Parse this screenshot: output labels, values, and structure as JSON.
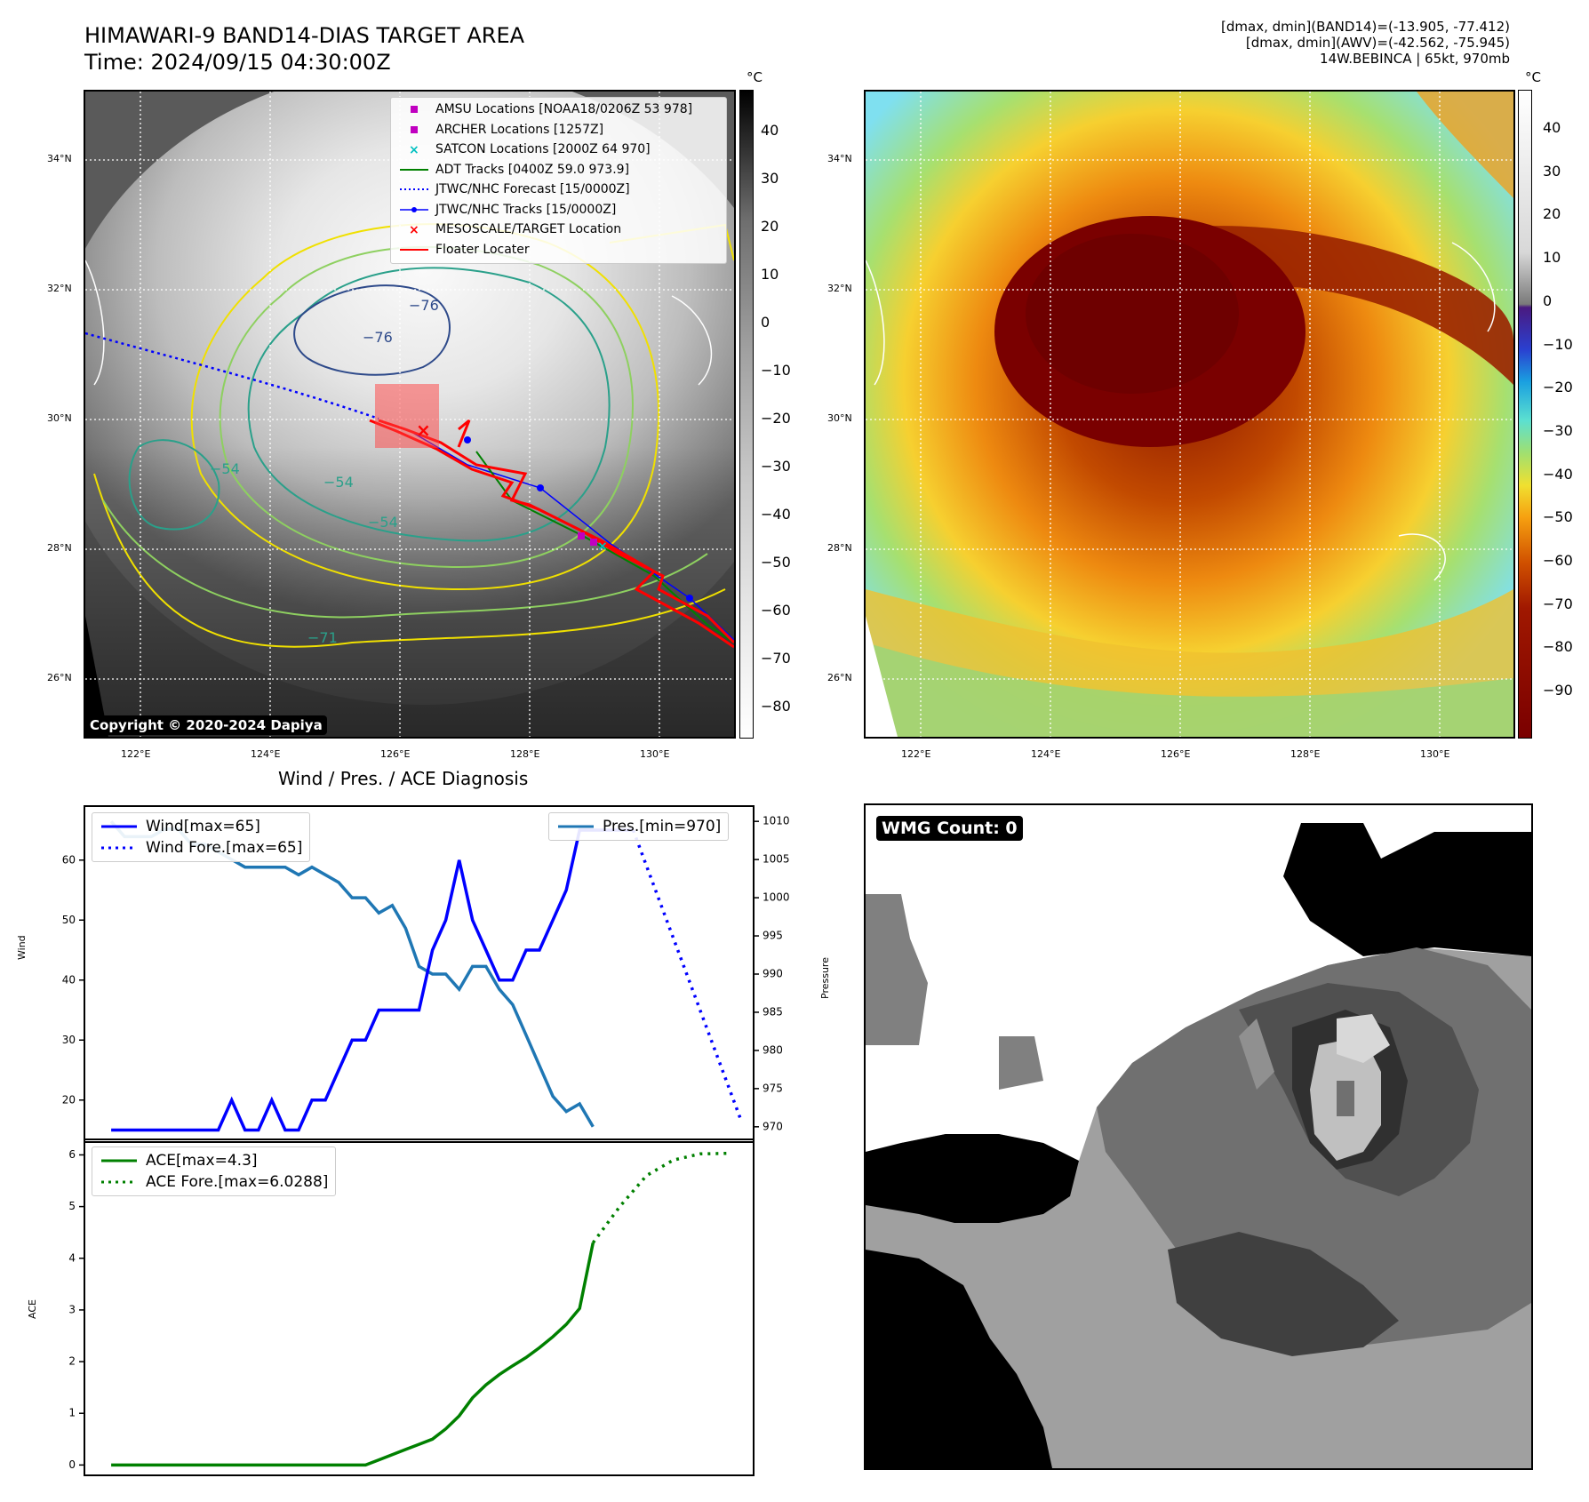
{
  "header": {
    "title_line1": "HIMAWARI-9 BAND14-DIAS TARGET AREA",
    "title_line2": "Time: 2024/09/15 04:30:00Z",
    "right_line1": "[dmax, dmin](BAND14)=(-13.905, -77.412)",
    "right_line2": "[dmax, dmin](AWV)=(-42.562, -75.945)",
    "right_line3": "14W.BEBINCA | 65kt, 970mb"
  },
  "map": {
    "lat_labels": [
      "34°N",
      "32°N",
      "30°N",
      "28°N",
      "26°N"
    ],
    "lon_labels": [
      "122°E",
      "124°E",
      "126°E",
      "128°E",
      "130°E"
    ],
    "contour_labels": [
      "−76",
      "−76",
      "−54",
      "−54",
      "−54",
      "−71"
    ],
    "copyright": "Copyright © 2020-2024 Dapiya",
    "legend": [
      {
        "label": "AMSU Locations [NOAA18/0206Z 53 978]",
        "symbol": "square",
        "color": "#c000c0"
      },
      {
        "label": "ARCHER Locations [1257Z]",
        "symbol": "square",
        "color": "#c000c0"
      },
      {
        "label": "SATCON Locations [2000Z 64 970]",
        "symbol": "x",
        "color": "#00c0c0"
      },
      {
        "label": "ADT Tracks [0400Z 59.0 973.9]",
        "symbol": "line",
        "color": "#008000"
      },
      {
        "label": "JTWC/NHC Forecast [15/0000Z]",
        "symbol": "dotted",
        "color": "#0000ff"
      },
      {
        "label": "JTWC/NHC Tracks [15/0000Z]",
        "symbol": "dotline",
        "color": "#0000ff"
      },
      {
        "label": "MESOSCALE/TARGET Location",
        "symbol": "x",
        "color": "#ff0000"
      },
      {
        "label": "Floater Locater",
        "symbol": "line",
        "color": "#ff0000"
      }
    ]
  },
  "colorbar_gray": {
    "unit": "°C",
    "ticks": [
      "40",
      "30",
      "20",
      "10",
      "0",
      "−10",
      "−20",
      "−30",
      "−40",
      "−50",
      "−60",
      "−70",
      "−80"
    ]
  },
  "colorbar_awv": {
    "unit": "°C",
    "ticks": [
      "40",
      "30",
      "20",
      "10",
      "0",
      "−10",
      "−20",
      "−30",
      "−40",
      "−50",
      "−60",
      "−70",
      "−80",
      "−90"
    ]
  },
  "wmg": {
    "badge": "WMG Count: 0"
  },
  "chart_data": [
    {
      "type": "line",
      "title": "Wind / Pres. / ACE Diagnosis",
      "ylabel": "Wind",
      "y2label": "Pressure",
      "ylim": [
        13,
        69
      ],
      "y2lim": [
        968,
        1012
      ],
      "yticks": [
        20,
        30,
        40,
        50,
        60
      ],
      "y2ticks": [
        970,
        975,
        980,
        985,
        990,
        995,
        1000,
        1005,
        1010
      ],
      "xlim": [
        -2,
        48
      ],
      "series": [
        {
          "name": "Wind[max=65]",
          "axis": "left",
          "style": "solid",
          "color": "#0000ff",
          "x": [
            0,
            2,
            4,
            6,
            8,
            9,
            10,
            11,
            12,
            13,
            14,
            15,
            16,
            17,
            18,
            19,
            20,
            21,
            22,
            23,
            24,
            25,
            26,
            27,
            28,
            29,
            30,
            31,
            32,
            33,
            34,
            35,
            36,
            37,
            38,
            39
          ],
          "y": [
            15,
            15,
            15,
            15,
            15,
            20,
            15,
            15,
            20,
            15,
            15,
            20,
            20,
            25,
            30,
            30,
            35,
            35,
            35,
            35,
            45,
            50,
            60,
            50,
            45,
            40,
            40,
            45,
            45,
            50,
            55,
            65,
            65,
            65,
            65,
            65
          ]
        },
        {
          "name": "Wind Fore.[max=65]",
          "axis": "left",
          "style": "dotted",
          "color": "#0000ff",
          "x": [
            39,
            47
          ],
          "y": [
            65,
            17
          ]
        },
        {
          "name": "Pres.[min=970]",
          "axis": "right",
          "style": "solid",
          "color": "#1f77b4",
          "x": [
            0,
            1,
            2,
            3,
            4,
            5,
            6,
            7,
            8,
            9,
            10,
            11,
            12,
            13,
            14,
            15,
            16,
            17,
            18,
            19,
            20,
            21,
            22,
            23,
            24,
            25,
            26,
            27,
            28,
            29,
            30,
            31,
            32,
            33,
            34,
            35,
            36
          ],
          "y": [
            1010,
            1008,
            1008,
            1008,
            1009,
            1009,
            1007,
            1007,
            1006,
            1005,
            1004,
            1004,
            1004,
            1004,
            1003,
            1004,
            1003,
            1002,
            1000,
            1000,
            998,
            999,
            996,
            991,
            990,
            990,
            988,
            991,
            991,
            988,
            986,
            982,
            978,
            974,
            972,
            973,
            970
          ]
        }
      ]
    },
    {
      "type": "line",
      "ylabel": "ACE",
      "ylim": [
        -0.2,
        6.3
      ],
      "yticks": [
        0,
        1,
        2,
        3,
        4,
        5,
        6
      ],
      "xlim": [
        -2,
        48
      ],
      "series": [
        {
          "name": "ACE[max=4.3]",
          "style": "solid",
          "color": "#008000",
          "x": [
            0,
            5,
            10,
            15,
            18,
            19,
            20,
            22,
            23,
            24,
            25,
            26,
            27,
            28,
            29,
            30,
            31,
            32,
            33,
            34,
            35,
            36
          ],
          "y": [
            0,
            0,
            0,
            0,
            0,
            0,
            0.1,
            0.3,
            0.4,
            0.5,
            0.7,
            0.95,
            1.3,
            1.55,
            1.75,
            1.92,
            2.08,
            2.27,
            2.48,
            2.72,
            3.03,
            4.3
          ]
        },
        {
          "name": "ACE Fore.[max=6.0288]",
          "style": "dotted",
          "color": "#008000",
          "x": [
            36,
            38,
            40,
            42,
            44,
            46
          ],
          "y": [
            4.3,
            5.0,
            5.6,
            5.9,
            6.02,
            6.03
          ]
        }
      ]
    }
  ]
}
